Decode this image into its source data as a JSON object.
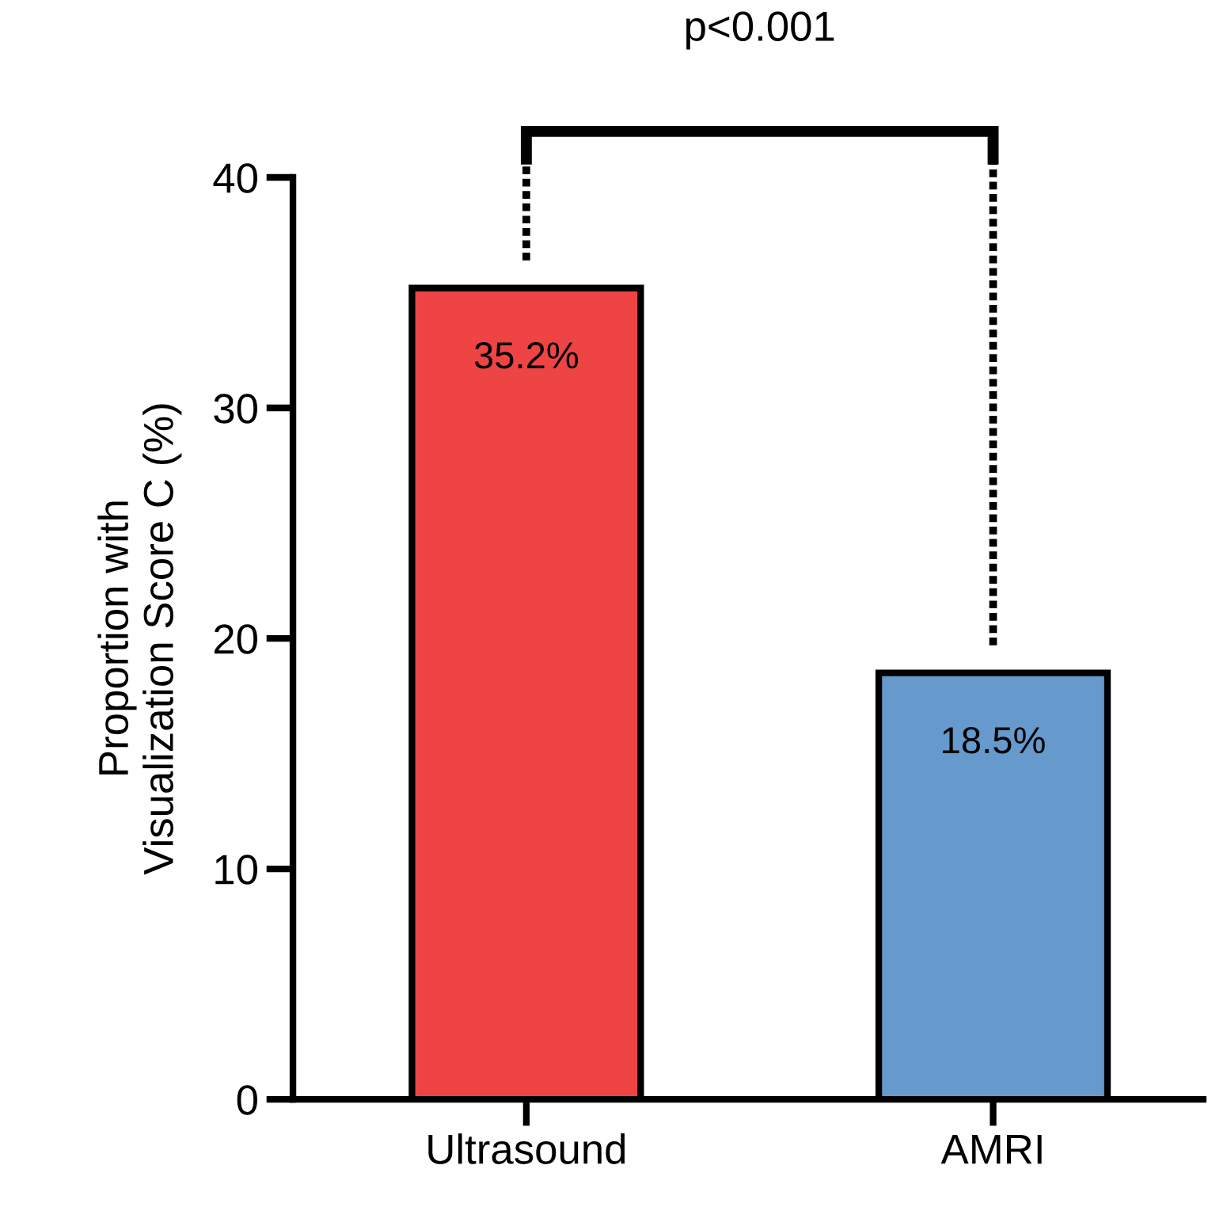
{
  "chart_data": {
    "type": "bar",
    "ylabel": "Proportion with\nVisualization Score C (%)",
    "categories": [
      "Ultrasound",
      "AMRI"
    ],
    "values": [
      35.2,
      18.5
    ],
    "colors": [
      "#ee4444",
      "#6699cc"
    ],
    "value_labels": [
      "35.2%",
      "18.5%"
    ],
    "ylim": [
      0,
      40
    ],
    "yticks": [
      0,
      10,
      20,
      30,
      40
    ],
    "annotations": [
      "p<0.001"
    ],
    "grid": false,
    "legend": false
  }
}
